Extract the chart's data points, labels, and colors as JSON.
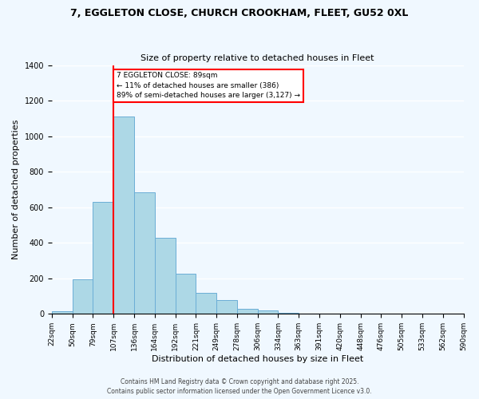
{
  "title": "7, EGGLETON CLOSE, CHURCH CROOKHAM, FLEET, GU52 0XL",
  "subtitle": "Size of property relative to detached houses in Fleet",
  "xlabel": "Distribution of detached houses by size in Fleet",
  "ylabel": "Number of detached properties",
  "bar_color": "#add8e6",
  "bar_edge_color": "#6baed6",
  "background_color": "#f0f8ff",
  "tick_labels": [
    "22sqm",
    "50sqm",
    "79sqm",
    "107sqm",
    "136sqm",
    "164sqm",
    "192sqm",
    "221sqm",
    "249sqm",
    "278sqm",
    "306sqm",
    "334sqm",
    "363sqm",
    "391sqm",
    "420sqm",
    "448sqm",
    "476sqm",
    "505sqm",
    "533sqm",
    "562sqm",
    "590sqm"
  ],
  "bar_heights": [
    15,
    195,
    630,
    1110,
    685,
    430,
    225,
    120,
    80,
    30,
    20,
    5,
    2,
    1,
    0,
    0,
    0,
    0,
    0,
    0
  ],
  "ylim": [
    0,
    1400
  ],
  "yticks": [
    0,
    200,
    400,
    600,
    800,
    1000,
    1200,
    1400
  ],
  "property_line_x": 2,
  "annotation_title": "7 EGGLETON CLOSE: 89sqm",
  "annotation_line1": "← 11% of detached houses are smaller (386)",
  "annotation_line2": "89% of semi-detached houses are larger (3,127) →",
  "footer_line1": "Contains HM Land Registry data © Crown copyright and database right 2025.",
  "footer_line2": "Contains public sector information licensed under the Open Government Licence v3.0."
}
